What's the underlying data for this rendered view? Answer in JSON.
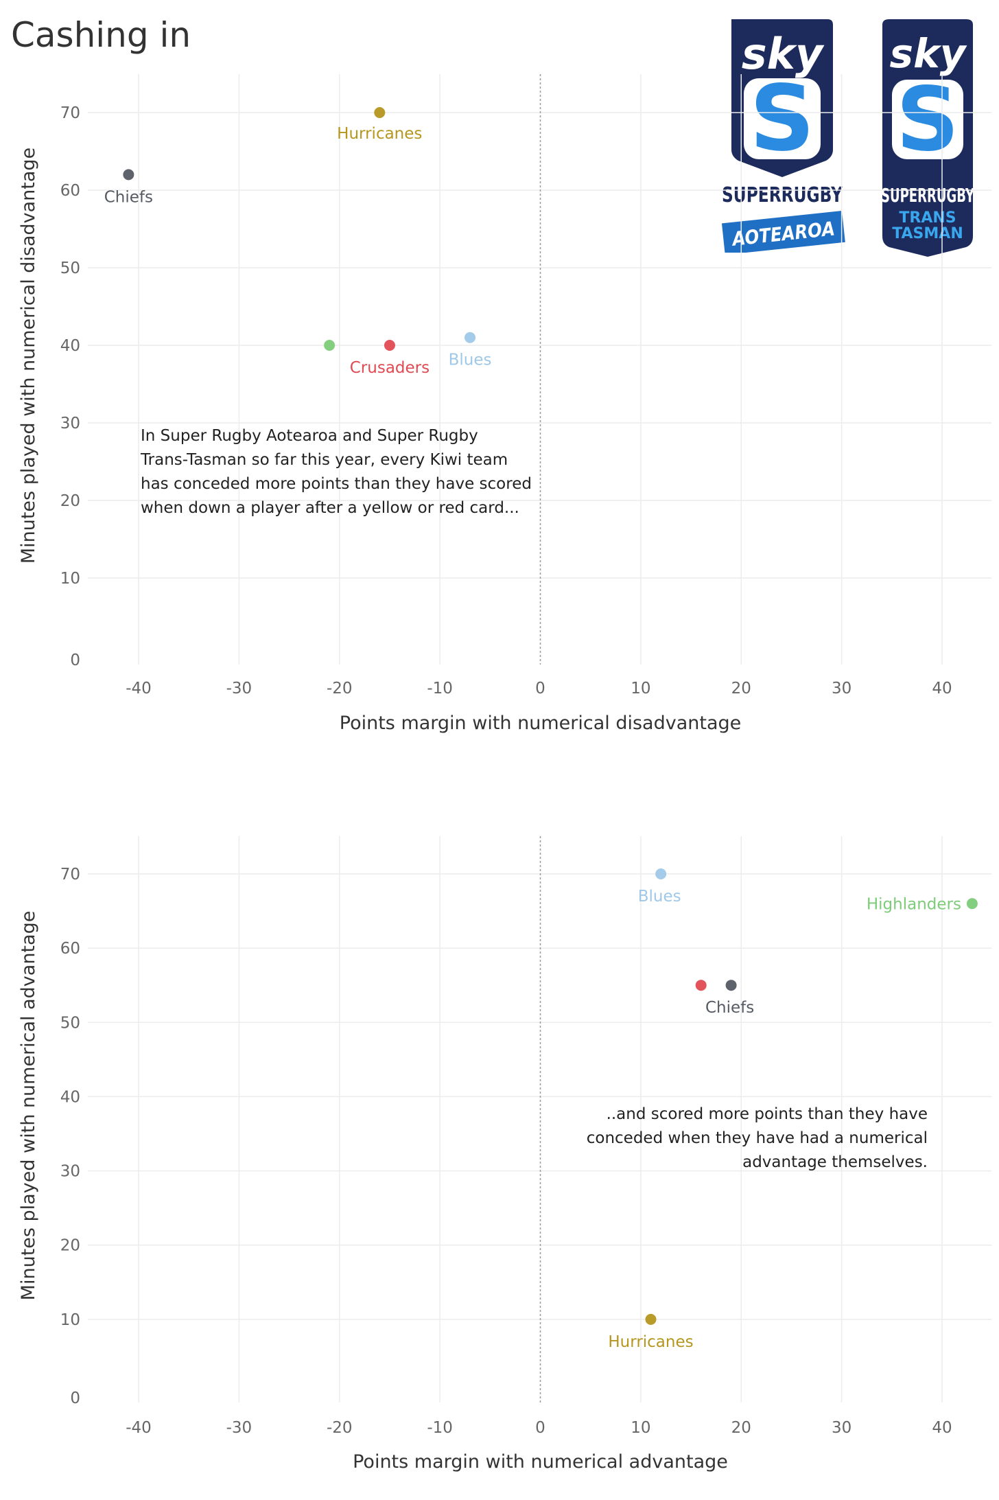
{
  "title": "Cashing in",
  "logos": [
    {
      "name": "sky-super-rugby-aotearoa",
      "brand": "sky",
      "line1": "SUPERRUGBY",
      "line2": "AOTEAROA"
    },
    {
      "name": "sky-super-rugby-trans-tasman",
      "brand": "sky",
      "line1": "SUPERRUGBY",
      "line2": "TRANS",
      "line3": "TASMAN"
    }
  ],
  "colors": {
    "Hurricanes": "#b5961e",
    "Chiefs": "#555a63",
    "Crusaders": "#e04a52",
    "Blues": "#9fc8e8",
    "Highlanders": "#7dcc78",
    "logo_navy": "#1d2a5c",
    "logo_blue": "#2a8be0"
  },
  "chart_data": [
    {
      "type": "scatter",
      "title": "",
      "xlabel": "Points margin with numerical disadvantage",
      "ylabel": "Minutes played with numerical disadvantage",
      "xlim": [
        -45,
        45
      ],
      "ylim": [
        0,
        75
      ],
      "x_ticks": [
        -40,
        -30,
        -20,
        -10,
        0,
        10,
        20,
        30,
        40
      ],
      "y_ticks": [
        0,
        10,
        20,
        30,
        40,
        50,
        60,
        70
      ],
      "grid": true,
      "reference_line_x": 0,
      "points": [
        {
          "team": "Hurricanes",
          "x": -16,
          "y": 70,
          "label": "Hurricanes"
        },
        {
          "team": "Chiefs",
          "x": -41,
          "y": 62,
          "label": "Chiefs"
        },
        {
          "team": "Highlanders",
          "x": -21,
          "y": 40,
          "label": ""
        },
        {
          "team": "Crusaders",
          "x": -15,
          "y": 40,
          "label": "Crusaders"
        },
        {
          "team": "Blues",
          "x": -7,
          "y": 41,
          "label": "Blues"
        }
      ],
      "annotation": [
        "In Super Rugby Aotearoa and Super Rugby",
        "Trans-Tasman so far this year, every Kiwi team",
        "has conceded more points than they have scored",
        "when down a player after a yellow or red card..."
      ]
    },
    {
      "type": "scatter",
      "title": "",
      "xlabel": "Points margin with numerical advantage",
      "ylabel": "Minutes played with numerical advantage",
      "xlim": [
        -45,
        45
      ],
      "ylim": [
        0,
        75
      ],
      "x_ticks": [
        -40,
        -30,
        -20,
        -10,
        0,
        10,
        20,
        30,
        40
      ],
      "y_ticks": [
        0,
        10,
        20,
        30,
        40,
        50,
        60,
        70
      ],
      "grid": true,
      "reference_line_x": 0,
      "points": [
        {
          "team": "Blues",
          "x": 12,
          "y": 70,
          "label": "Blues"
        },
        {
          "team": "Highlanders",
          "x": 43,
          "y": 66,
          "label": "Highlanders"
        },
        {
          "team": "Crusaders",
          "x": 16,
          "y": 55,
          "label": ""
        },
        {
          "team": "Chiefs",
          "x": 19,
          "y": 55,
          "label": "Chiefs"
        },
        {
          "team": "Hurricanes",
          "x": 11,
          "y": 10,
          "label": "Hurricanes"
        }
      ],
      "annotation": [
        "..and scored more points than they have",
        "conceded when they have had a numerical",
        "advantage themselves."
      ]
    }
  ]
}
